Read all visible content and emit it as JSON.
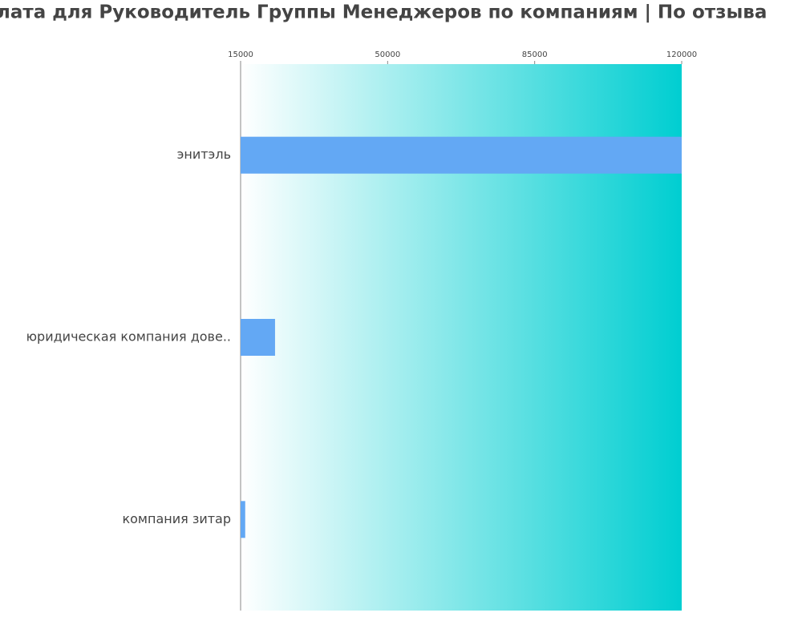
{
  "chart_data": {
    "type": "hbar",
    "title": "лата для Руководитель Группы Менеджеров по компаниям  | По отзыва",
    "categories": [
      "энитэль",
      "юридическая компания дове..",
      "компания зитар"
    ],
    "values": [
      120000,
      23200,
      16100
    ],
    "color": "#63a8f4",
    "xlim": [
      15000,
      120000
    ],
    "xticks": [
      15000,
      50000,
      85000,
      120000
    ],
    "background_gradient": [
      "#ffffff",
      "#00ced1"
    ]
  }
}
